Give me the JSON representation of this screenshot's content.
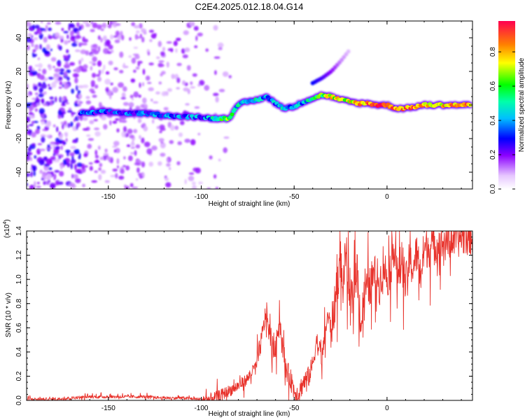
{
  "title": "C2E4.2025.012.18.04.G14",
  "chart_data": [
    {
      "type": "heatmap",
      "xlabel": "Height of straight line (km)",
      "ylabel": "Frequency (Hz)",
      "xlim": [
        -194,
        46
      ],
      "ylim": [
        -50,
        50
      ],
      "xticks": [
        -150,
        -100,
        -50,
        0
      ],
      "yticks": [
        -40,
        -20,
        0,
        20,
        40
      ],
      "colorbar": {
        "label": "Normalized spectral amplitude",
        "range": [
          0,
          0.98
        ],
        "ticks": [
          0.0,
          0.2,
          0.4,
          0.6,
          0.8
        ],
        "tick_labels": [
          "0.0",
          "0.2",
          "0.4",
          "0.6",
          "0.8"
        ],
        "colormap": "rainbow"
      },
      "ridge": {
        "x": [
          -165,
          -150,
          -140,
          -130,
          -120,
          -110,
          -100,
          -95,
          -90,
          -85,
          -82,
          -78,
          -75,
          -70,
          -65,
          -60,
          -55,
          -50,
          -45,
          -40,
          -35,
          -30,
          -25,
          -20,
          -15,
          -10,
          -5,
          0,
          5,
          10,
          15,
          20,
          30,
          40,
          45
        ],
        "y": [
          -5,
          -4,
          -5,
          -5,
          -6,
          -7,
          -7,
          -8,
          -8,
          -8,
          -2,
          1,
          2,
          3,
          5,
          1,
          -2,
          -1,
          2,
          4,
          6,
          5,
          3,
          2,
          1,
          1,
          0,
          0,
          -2,
          -2,
          -1,
          0,
          0,
          0,
          0
        ],
        "amplitude": [
          0.35,
          0.3,
          0.3,
          0.35,
          0.35,
          0.35,
          0.35,
          0.4,
          0.55,
          0.65,
          0.4,
          0.5,
          0.45,
          0.45,
          0.4,
          0.4,
          0.45,
          0.4,
          0.4,
          0.5,
          0.6,
          0.75,
          0.7,
          0.75,
          0.8,
          0.85,
          0.9,
          0.9,
          0.8,
          0.85,
          0.85,
          0.8,
          0.8,
          0.85,
          0.8
        ]
      },
      "branch": {
        "x": [
          -40,
          -35,
          -30,
          -25,
          -20
        ],
        "y": [
          13,
          16,
          20,
          26,
          33
        ],
        "amplitude": [
          0.3,
          0.25,
          0.2,
          0.12,
          0.08
        ]
      }
    },
    {
      "type": "line",
      "xlabel": "Height of straight line (km)",
      "ylabel": "SNR (10 * v/v)",
      "y_multiplier": "(x10",
      "y_multiplier_exp": "4",
      "y_multiplier_close": ")",
      "xlim": [
        -194,
        46
      ],
      "ylim": [
        0,
        1.4
      ],
      "xticks": [
        -150,
        -100,
        -50,
        0
      ],
      "yticks": [
        0.0,
        0.2,
        0.4,
        0.6,
        0.8,
        1.0,
        1.2,
        1.4
      ],
      "ytick_labels": [
        "0.0",
        "0.2",
        "0.4",
        "0.6",
        "0.8",
        "1.0",
        "1.2",
        "1.4"
      ],
      "color": "#e8312a",
      "series": [
        {
          "x": [
            -194,
            -180,
            -170,
            -160,
            -150,
            -140,
            -130,
            -120,
            -110,
            -100,
            -95,
            -90,
            -85,
            -80,
            -75,
            -70,
            -67,
            -65,
            -63,
            -60,
            -58,
            -55,
            -52,
            -50,
            -48,
            -45,
            -42,
            -40,
            -38,
            -35,
            -32,
            -30,
            -28,
            -26,
            -25,
            -24,
            -22,
            -20,
            -18,
            -16,
            -14,
            -12,
            -10,
            -8,
            -6,
            -4,
            -2,
            0,
            2,
            4,
            6,
            8,
            10,
            12,
            14,
            16,
            18,
            20,
            25,
            30,
            35,
            40,
            46
          ],
          "y": [
            0.01,
            0.01,
            0.02,
            0.03,
            0.03,
            0.03,
            0.03,
            0.02,
            0.02,
            0.01,
            0.01,
            0.04,
            0.08,
            0.12,
            0.18,
            0.3,
            0.55,
            0.75,
            0.5,
            0.4,
            0.7,
            0.28,
            0.18,
            0.08,
            0.05,
            0.15,
            0.2,
            0.3,
            0.5,
            0.35,
            0.7,
            0.6,
            0.8,
            1.05,
            1.2,
            0.9,
            1.25,
            0.7,
            0.95,
            1.1,
            0.6,
            0.95,
            0.9,
            1.0,
            1.05,
            0.95,
            1.15,
            1.0,
            1.1,
            1.3,
            1.0,
            1.2,
            0.95,
            1.15,
            1.1,
            1.22,
            1.05,
            1.25,
            1.28,
            1.3,
            1.33,
            1.36,
            1.37
          ]
        }
      ]
    }
  ]
}
